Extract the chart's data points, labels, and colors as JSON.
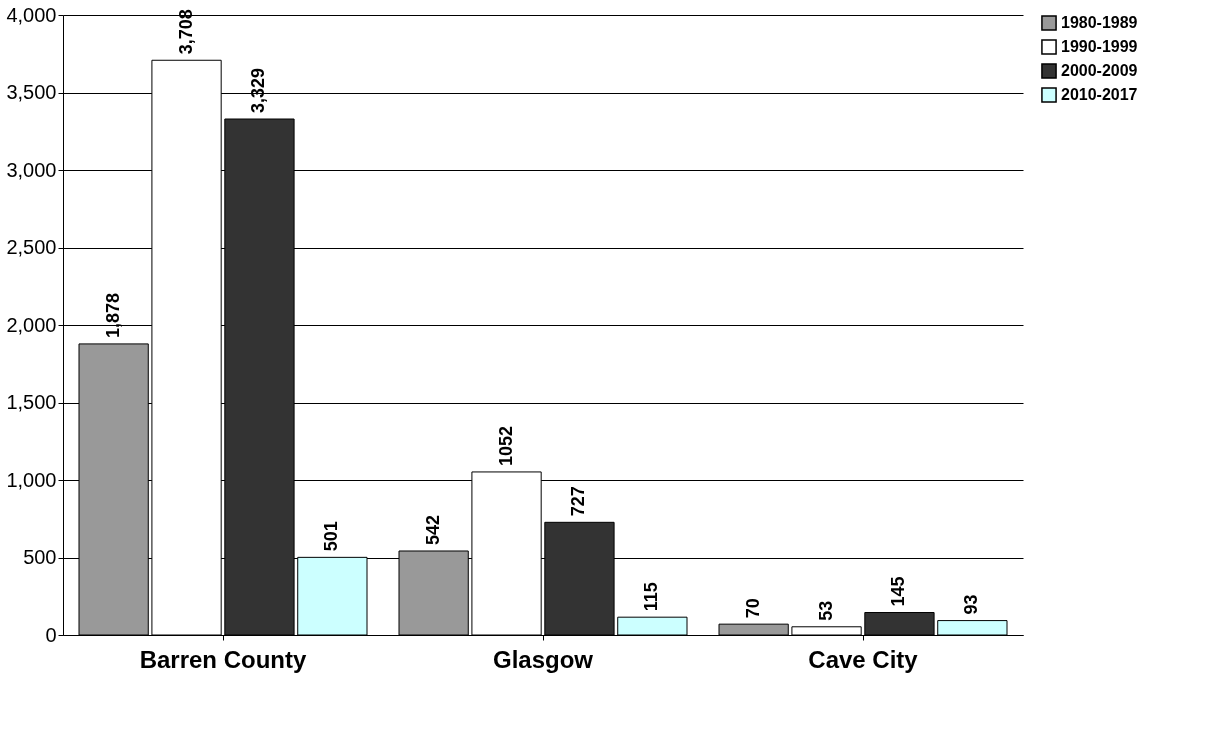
{
  "chart_data": {
    "type": "bar",
    "categories": [
      "Barren County",
      "Glasgow",
      "Cave City"
    ],
    "series": [
      {
        "name": "1980-1989",
        "color": "#999999",
        "values": [
          1878,
          542,
          70
        ],
        "value_labels": [
          "1,878",
          "542",
          "70"
        ]
      },
      {
        "name": "1990-1999",
        "color": "#ffffff",
        "values": [
          3708,
          1052,
          53
        ],
        "value_labels": [
          "3,708",
          "1052",
          "53"
        ]
      },
      {
        "name": "2000-2009",
        "color": "#333333",
        "values": [
          3329,
          727,
          145
        ],
        "value_labels": [
          "3,329",
          "727",
          "145"
        ]
      },
      {
        "name": "2010-2017",
        "color": "#ccffff",
        "values": [
          501,
          115,
          93
        ],
        "value_labels": [
          "501",
          "115",
          "93"
        ]
      }
    ],
    "ylim": [
      0,
      4000
    ],
    "yticks": [
      0,
      500,
      {
        "value": 1000,
        "label": "1,000"
      },
      {
        "value": 1500,
        "label": "1,500"
      },
      {
        "value": 2000,
        "label": "2,000"
      },
      {
        "value": 2500,
        "label": "2,500"
      },
      {
        "value": 3000,
        "label": "3,000"
      },
      {
        "value": 3500,
        "label": "3,500"
      },
      {
        "value": 4000,
        "label": "4,000"
      }
    ],
    "grid": "y",
    "legend": "right"
  }
}
